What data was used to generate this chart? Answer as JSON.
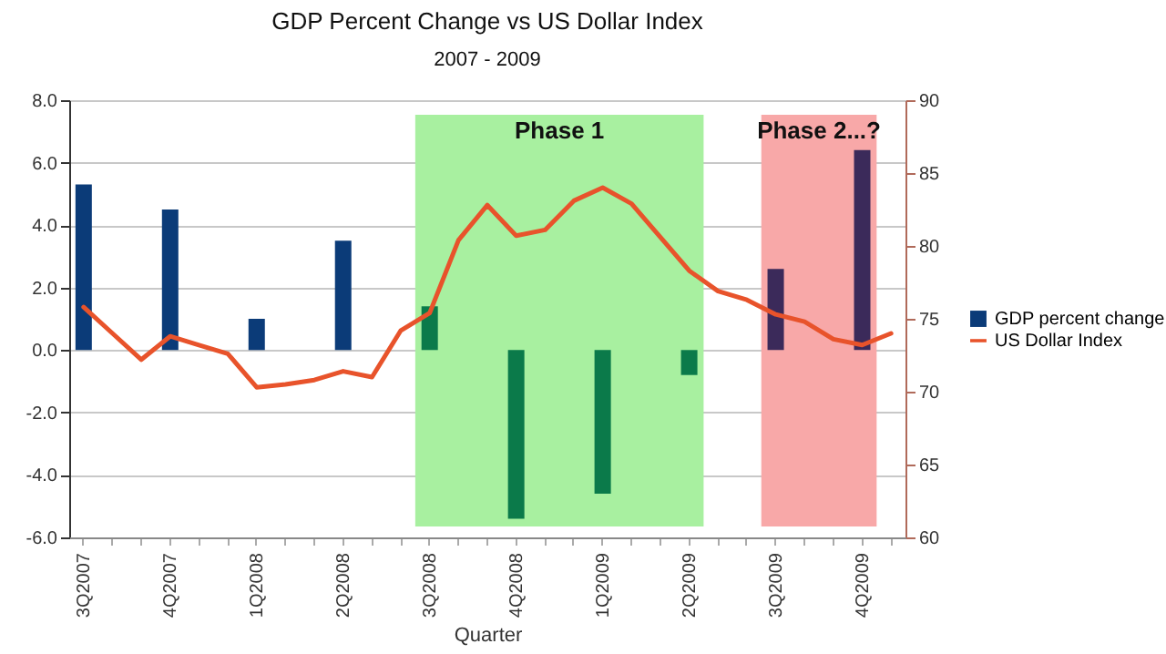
{
  "chart_data": {
    "type": "bar",
    "title": "GDP Percent Change vs US Dollar Index",
    "subtitle": "2007 - 2009",
    "xlabel": "Quarter",
    "categories": [
      "3Q2007",
      null,
      null,
      "4Q2007",
      null,
      null,
      "1Q2008",
      null,
      null,
      "2Q2008",
      null,
      null,
      "3Q2008",
      null,
      null,
      "4Q2008",
      null,
      null,
      "1Q2009",
      null,
      null,
      "2Q2009",
      null,
      null,
      "3Q2009",
      null,
      null,
      "4Q2009",
      null
    ],
    "ylim": [
      -6,
      8
    ],
    "yticks": [
      {
        "value": -6,
        "label": "-6.0"
      },
      {
        "value": -4,
        "label": "-4.0"
      },
      {
        "value": -2,
        "label": "-2.0"
      },
      {
        "value": 0,
        "label": "0.0"
      },
      {
        "value": 2,
        "label": "2.0"
      },
      {
        "value": 4,
        "label": "4.0"
      },
      {
        "value": 6,
        "label": "6.0"
      },
      {
        "value": 8,
        "label": "8.0"
      }
    ],
    "y2lim": [
      60,
      90
    ],
    "y2ticks": [
      60,
      65,
      70,
      75,
      80,
      85,
      90
    ],
    "series": [
      {
        "name": "GDP percent change",
        "color": "#0b3b78",
        "values": [
          5.3,
          null,
          null,
          4.5,
          null,
          null,
          1.0,
          null,
          null,
          3.5,
          null,
          null,
          1.4,
          null,
          null,
          -5.4,
          null,
          null,
          -4.6,
          null,
          null,
          -0.8,
          null,
          null,
          2.6,
          null,
          null,
          6.4,
          null
        ],
        "colors": [
          "#0b3b78",
          null,
          null,
          "#0b3b78",
          null,
          null,
          "#0b3b78",
          null,
          null,
          "#0b3b78",
          null,
          null,
          "#0b7a4a",
          null,
          null,
          "#0b7a4a",
          null,
          null,
          "#0b7a4a",
          null,
          null,
          "#0b7a4a",
          null,
          null,
          "#3b2a5a",
          null,
          null,
          "#3b2a5a",
          null
        ]
      },
      {
        "name": "US Dollar Index",
        "type": "line",
        "axis": "y2",
        "color": "#e8532b",
        "values": [
          75.8,
          74.0,
          72.2,
          73.8,
          73.2,
          72.6,
          70.3,
          70.5,
          70.8,
          71.4,
          71.0,
          74.2,
          75.4,
          80.4,
          82.8,
          80.7,
          81.1,
          83.1,
          84.0,
          82.9,
          80.6,
          78.3,
          76.9,
          76.3,
          75.3,
          74.8,
          73.6,
          73.2,
          74.0
        ]
      }
    ],
    "bands": [
      {
        "axis": "x",
        "from": "3Q2008",
        "to": "2Q2009",
        "label": "Phase 1",
        "color": "#a8f0a0"
      },
      {
        "axis": "x",
        "from": "3Q2009",
        "to": "4Q2009",
        "label": "Phase 2...?",
        "color": "#f8a8a8"
      }
    ],
    "grid": "y",
    "legend": "right",
    "marker": "none",
    "line_style": "solid"
  }
}
